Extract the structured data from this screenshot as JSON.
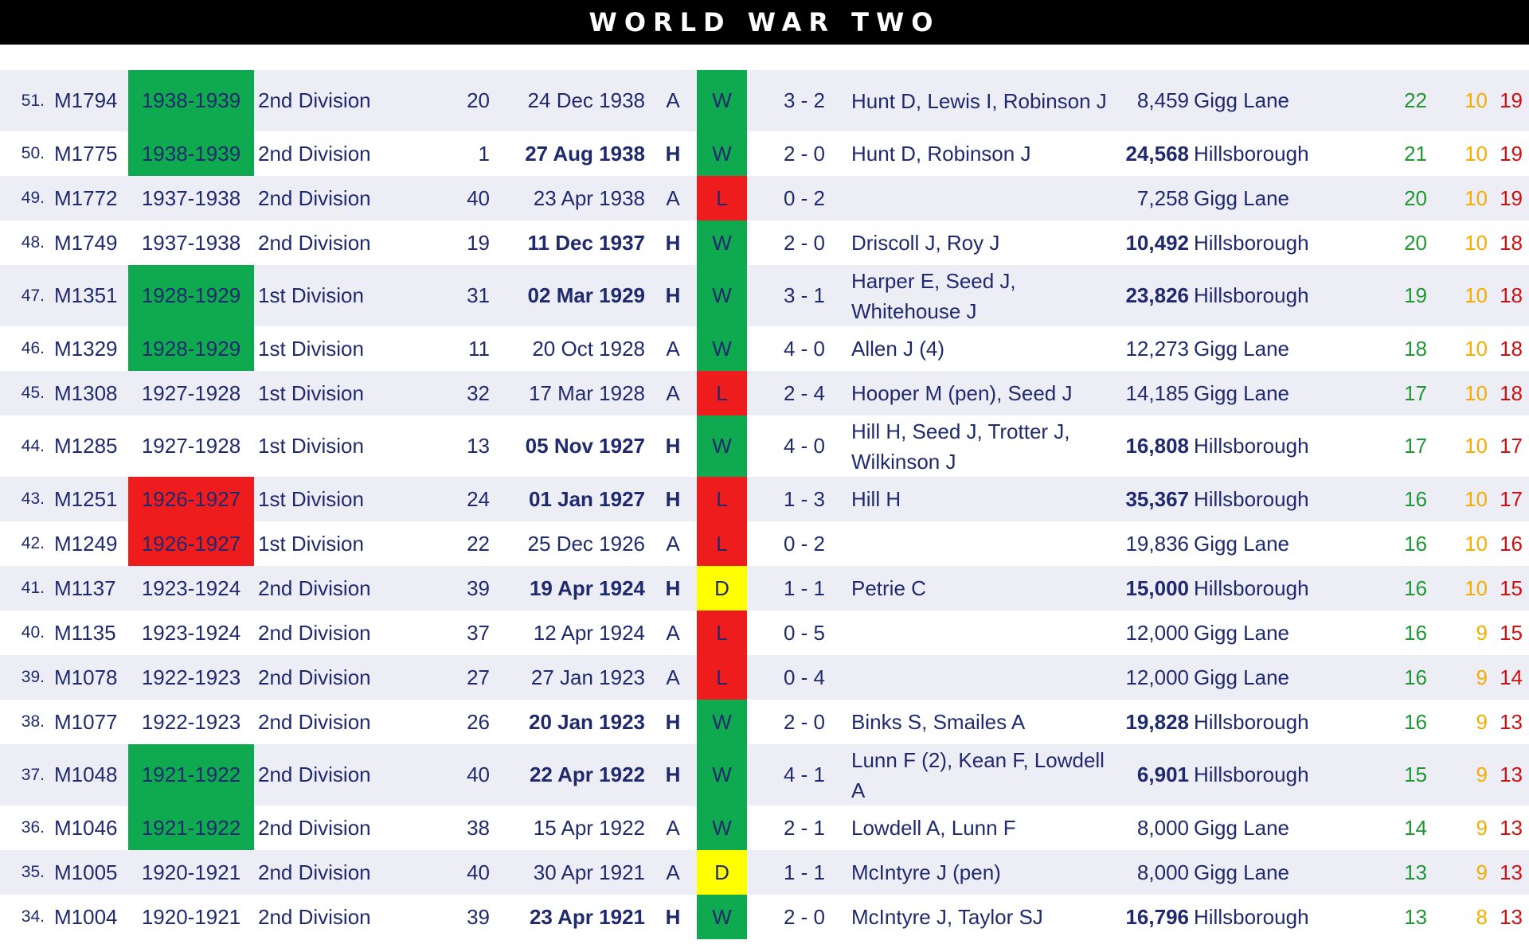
{
  "title": "WORLD WAR TWO",
  "colors": {
    "header_bg": "#000000",
    "win_green": "#0faa4f",
    "loss_red": "#ee1c1c",
    "draw_yellow": "#ffff00",
    "row_shade": "#ededf6",
    "text_navy": "#1f2a6e"
  },
  "matches": [
    {
      "num": "51.",
      "code": "M1794",
      "season": "1938-1939",
      "season_hl": "win",
      "division": "2nd Division",
      "position": "20",
      "date": "24 Dec 1938",
      "venue_flag": "A",
      "result": "W",
      "score": "3  -  2",
      "scorers": "Hunt D, Lewis I, Robinson J",
      "attendance": "8,459",
      "ground": "Gigg Lane",
      "w": "22",
      "d": "10",
      "l": "19"
    },
    {
      "num": "50.",
      "code": "M1775",
      "season": "1938-1939",
      "season_hl": "win",
      "division": "2nd Division",
      "position": "1",
      "date": "27 Aug 1938",
      "venue_flag": "H",
      "result": "W",
      "score": "2  -  0",
      "scorers": "Hunt D, Robinson J",
      "attendance": "24,568",
      "ground": "Hillsborough",
      "w": "21",
      "d": "10",
      "l": "19"
    },
    {
      "num": "49.",
      "code": "M1772",
      "season": "1937-1938",
      "season_hl": "",
      "division": "2nd Division",
      "position": "40",
      "date": "23 Apr 1938",
      "venue_flag": "A",
      "result": "L",
      "score": "0  -  2",
      "scorers": "",
      "attendance": "7,258",
      "ground": "Gigg Lane",
      "w": "20",
      "d": "10",
      "l": "19"
    },
    {
      "num": "48.",
      "code": "M1749",
      "season": "1937-1938",
      "season_hl": "",
      "division": "2nd Division",
      "position": "19",
      "date": "11 Dec 1937",
      "venue_flag": "H",
      "result": "W",
      "score": "2  -  0",
      "scorers": "Driscoll J, Roy J",
      "attendance": "10,492",
      "ground": "Hillsborough",
      "w": "20",
      "d": "10",
      "l": "18"
    },
    {
      "num": "47.",
      "code": "M1351",
      "season": "1928-1929",
      "season_hl": "win",
      "division": "1st Division",
      "position": "31",
      "date": "02 Mar 1929",
      "venue_flag": "H",
      "result": "W",
      "score": "3  -  1",
      "scorers": "Harper E, Seed J, Whitehouse J",
      "attendance": "23,826",
      "ground": "Hillsborough",
      "w": "19",
      "d": "10",
      "l": "18"
    },
    {
      "num": "46.",
      "code": "M1329",
      "season": "1928-1929",
      "season_hl": "win",
      "division": "1st Division",
      "position": "11",
      "date": "20 Oct 1928",
      "venue_flag": "A",
      "result": "W",
      "score": "4  -  0",
      "scorers": "Allen J (4)",
      "attendance": "12,273",
      "ground": "Gigg Lane",
      "w": "18",
      "d": "10",
      "l": "18"
    },
    {
      "num": "45.",
      "code": "M1308",
      "season": "1927-1928",
      "season_hl": "",
      "division": "1st Division",
      "position": "32",
      "date": "17 Mar 1928",
      "venue_flag": "A",
      "result": "L",
      "score": "2  -  4",
      "scorers": "Hooper M (pen), Seed J",
      "attendance": "14,185",
      "ground": "Gigg Lane",
      "w": "17",
      "d": "10",
      "l": "18"
    },
    {
      "num": "44.",
      "code": "M1285",
      "season": "1927-1928",
      "season_hl": "",
      "division": "1st Division",
      "position": "13",
      "date": "05 Nov 1927",
      "venue_flag": "H",
      "result": "W",
      "score": "4  -  0",
      "scorers": "Hill H, Seed J, Trotter J, Wilkinson J",
      "attendance": "16,808",
      "ground": "Hillsborough",
      "w": "17",
      "d": "10",
      "l": "17"
    },
    {
      "num": "43.",
      "code": "M1251",
      "season": "1926-1927",
      "season_hl": "loss",
      "division": "1st Division",
      "position": "24",
      "date": "01 Jan 1927",
      "venue_flag": "H",
      "result": "L",
      "score": "1  -  3",
      "scorers": "Hill H",
      "attendance": "35,367",
      "ground": "Hillsborough",
      "w": "16",
      "d": "10",
      "l": "17"
    },
    {
      "num": "42.",
      "code": "M1249",
      "season": "1926-1927",
      "season_hl": "loss",
      "division": "1st Division",
      "position": "22",
      "date": "25 Dec 1926",
      "venue_flag": "A",
      "result": "L",
      "score": "0  -  2",
      "scorers": "",
      "attendance": "19,836",
      "ground": "Gigg Lane",
      "w": "16",
      "d": "10",
      "l": "16"
    },
    {
      "num": "41.",
      "code": "M1137",
      "season": "1923-1924",
      "season_hl": "",
      "division": "2nd Division",
      "position": "39",
      "date": "19 Apr 1924",
      "venue_flag": "H",
      "result": "D",
      "score": "1  -  1",
      "scorers": "Petrie C",
      "attendance": "15,000",
      "ground": "Hillsborough",
      "w": "16",
      "d": "10",
      "l": "15"
    },
    {
      "num": "40.",
      "code": "M1135",
      "season": "1923-1924",
      "season_hl": "",
      "division": "2nd Division",
      "position": "37",
      "date": "12 Apr 1924",
      "venue_flag": "A",
      "result": "L",
      "score": "0  -  5",
      "scorers": "",
      "attendance": "12,000",
      "ground": "Gigg Lane",
      "w": "16",
      "d": "9",
      "l": "15"
    },
    {
      "num": "39.",
      "code": "M1078",
      "season": "1922-1923",
      "season_hl": "",
      "division": "2nd Division",
      "position": "27",
      "date": "27 Jan 1923",
      "venue_flag": "A",
      "result": "L",
      "score": "0  -  4",
      "scorers": "",
      "attendance": "12,000",
      "ground": "Gigg Lane",
      "w": "16",
      "d": "9",
      "l": "14"
    },
    {
      "num": "38.",
      "code": "M1077",
      "season": "1922-1923",
      "season_hl": "",
      "division": "2nd Division",
      "position": "26",
      "date": "20 Jan 1923",
      "venue_flag": "H",
      "result": "W",
      "score": "2  -  0",
      "scorers": "Binks S, Smailes A",
      "attendance": "19,828",
      "ground": "Hillsborough",
      "w": "16",
      "d": "9",
      "l": "13"
    },
    {
      "num": "37.",
      "code": "M1048",
      "season": "1921-1922",
      "season_hl": "win",
      "division": "2nd Division",
      "position": "40",
      "date": "22 Apr 1922",
      "venue_flag": "H",
      "result": "W",
      "score": "4  -  1",
      "scorers": "Lunn F (2), Kean F, Lowdell A",
      "attendance": "6,901",
      "ground": "Hillsborough",
      "w": "15",
      "d": "9",
      "l": "13"
    },
    {
      "num": "36.",
      "code": "M1046",
      "season": "1921-1922",
      "season_hl": "win",
      "division": "2nd Division",
      "position": "38",
      "date": "15 Apr 1922",
      "venue_flag": "A",
      "result": "W",
      "score": "2  -  1",
      "scorers": "Lowdell A, Lunn F",
      "attendance": "8,000",
      "ground": "Gigg Lane",
      "w": "14",
      "d": "9",
      "l": "13"
    },
    {
      "num": "35.",
      "code": "M1005",
      "season": "1920-1921",
      "season_hl": "",
      "division": "2nd Division",
      "position": "40",
      "date": "30 Apr 1921",
      "venue_flag": "A",
      "result": "D",
      "score": "1  -  1",
      "scorers": "McIntyre J (pen)",
      "attendance": "8,000",
      "ground": "Gigg Lane",
      "w": "13",
      "d": "9",
      "l": "13"
    },
    {
      "num": "34.",
      "code": "M1004",
      "season": "1920-1921",
      "season_hl": "",
      "division": "2nd Division",
      "position": "39",
      "date": "23 Apr 1921",
      "venue_flag": "H",
      "result": "W",
      "score": "2  -  0",
      "scorers": "McIntyre J, Taylor SJ",
      "attendance": "16,796",
      "ground": "Hillsborough",
      "w": "13",
      "d": "8",
      "l": "13"
    }
  ]
}
